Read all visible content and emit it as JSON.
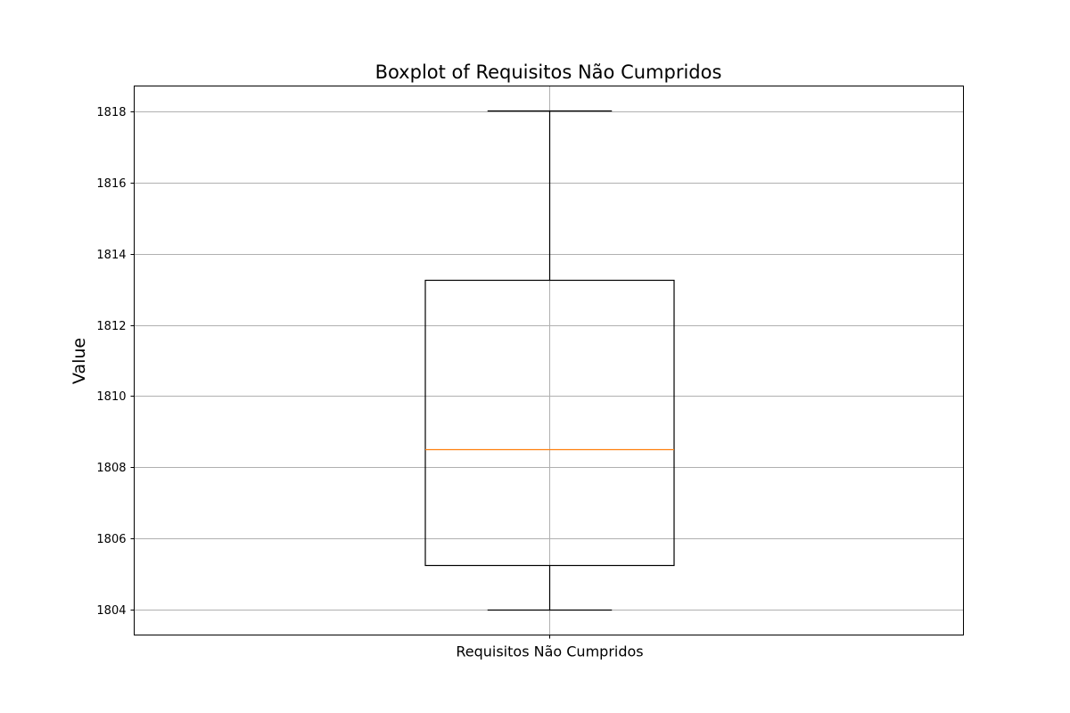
{
  "chart_data": {
    "type": "boxplot",
    "title": "Boxplot of Requisitos Não Cumpridos",
    "xlabel": "",
    "ylabel": "Value",
    "categories": [
      "Requisitos Não Cumpridos"
    ],
    "series": [
      {
        "values": [
          {
            "whisker_low": 1804,
            "q1": 1805.25,
            "median": 1808.5,
            "q3": 1813.25,
            "whisker_high": 1818
          }
        ]
      }
    ],
    "ylim": [
      1803.3,
      1818.7
    ],
    "yticks": [
      1804,
      1806,
      1808,
      1810,
      1812,
      1814,
      1816,
      1818
    ],
    "grid": true,
    "colors": {
      "box": "#000000",
      "median": "#ff7f0e",
      "grid": "#b0b0b0"
    }
  }
}
